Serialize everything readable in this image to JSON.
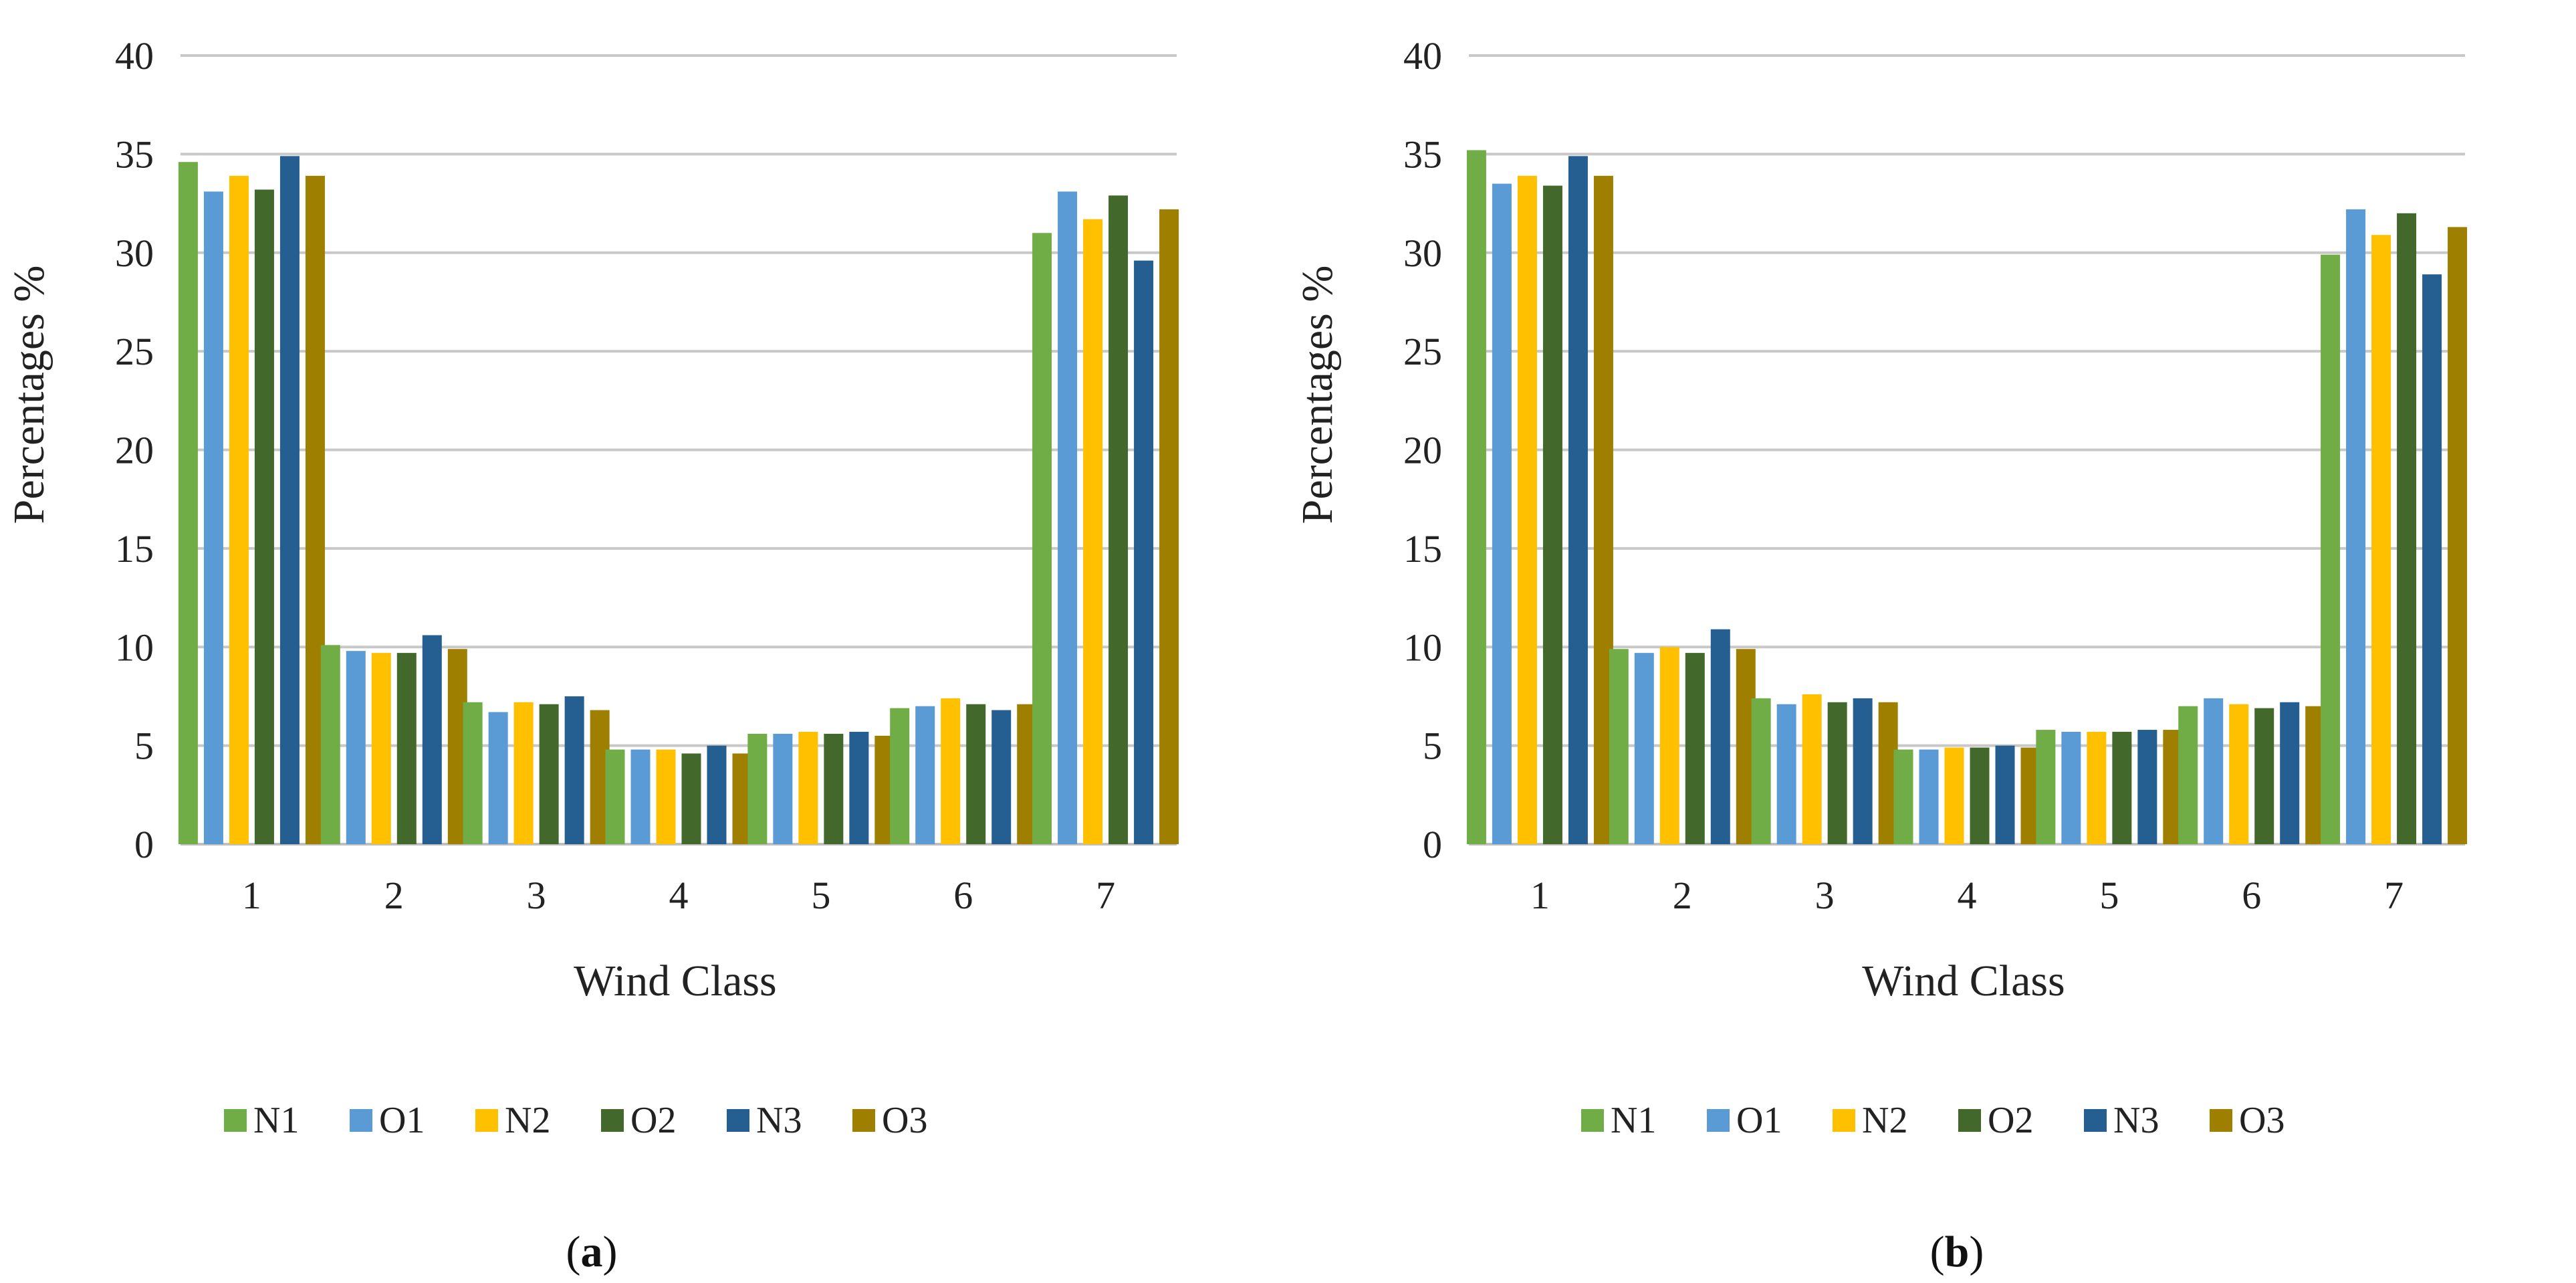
{
  "chart_data": [
    {
      "type": "bar",
      "panel_label": "a",
      "categories": [
        "1",
        "2",
        "3",
        "4",
        "5",
        "6",
        "7"
      ],
      "series": [
        {
          "name": "N1",
          "values": [
            34.6,
            10.1,
            7.2,
            4.8,
            5.6,
            6.9,
            31.0
          ]
        },
        {
          "name": "O1",
          "values": [
            33.1,
            9.8,
            6.7,
            4.8,
            5.6,
            7.0,
            33.1
          ]
        },
        {
          "name": "N2",
          "values": [
            33.9,
            9.7,
            7.2,
            4.8,
            5.7,
            7.4,
            31.7
          ]
        },
        {
          "name": "O2",
          "values": [
            33.2,
            9.7,
            7.1,
            4.6,
            5.6,
            7.1,
            32.9
          ]
        },
        {
          "name": "N3",
          "values": [
            34.9,
            10.6,
            7.5,
            5.0,
            5.7,
            6.8,
            29.6
          ]
        },
        {
          "name": "O3",
          "values": [
            33.9,
            9.9,
            6.8,
            4.6,
            5.5,
            7.1,
            32.2
          ]
        }
      ],
      "title": "",
      "xlabel": "Wind Class",
      "ylabel": "Percentages %",
      "ylim": [
        0,
        40
      ],
      "yticks": [
        "0",
        "5",
        "10",
        "15",
        "20",
        "25",
        "30",
        "35",
        "40"
      ],
      "grid": true,
      "legend_position": "bottom"
    },
    {
      "type": "bar",
      "panel_label": "b",
      "categories": [
        "1",
        "2",
        "3",
        "4",
        "5",
        "6",
        "7"
      ],
      "series": [
        {
          "name": "N1",
          "values": [
            35.2,
            9.9,
            7.4,
            4.8,
            5.8,
            7.0,
            29.9
          ]
        },
        {
          "name": "O1",
          "values": [
            33.5,
            9.7,
            7.1,
            4.8,
            5.7,
            7.4,
            32.2
          ]
        },
        {
          "name": "N2",
          "values": [
            33.9,
            10.0,
            7.6,
            4.9,
            5.7,
            7.1,
            30.9
          ]
        },
        {
          "name": "O2",
          "values": [
            33.4,
            9.7,
            7.2,
            4.9,
            5.7,
            6.9,
            32.0
          ]
        },
        {
          "name": "N3",
          "values": [
            34.9,
            10.9,
            7.4,
            5.0,
            5.8,
            7.2,
            28.9
          ]
        },
        {
          "name": "O3",
          "values": [
            33.9,
            9.9,
            7.2,
            4.9,
            5.8,
            7.0,
            31.3
          ]
        }
      ],
      "title": "",
      "xlabel": "Wind Class",
      "ylabel": "Percentages %",
      "ylim": [
        0,
        40
      ],
      "yticks": [
        "0",
        "5",
        "10",
        "15",
        "20",
        "25",
        "30",
        "35",
        "40"
      ],
      "grid": true,
      "legend_position": "bottom"
    }
  ],
  "series_colors": {
    "N1": "#70ad47",
    "O1": "#5b9bd5",
    "N2": "#ffc000",
    "O2": "#43682b",
    "N3": "#255e91",
    "O3": "#9e7f00"
  },
  "captions": [
    {
      "open": "(",
      "letter": "a",
      "close": ")"
    },
    {
      "open": "(",
      "letter": "b",
      "close": ")"
    }
  ]
}
